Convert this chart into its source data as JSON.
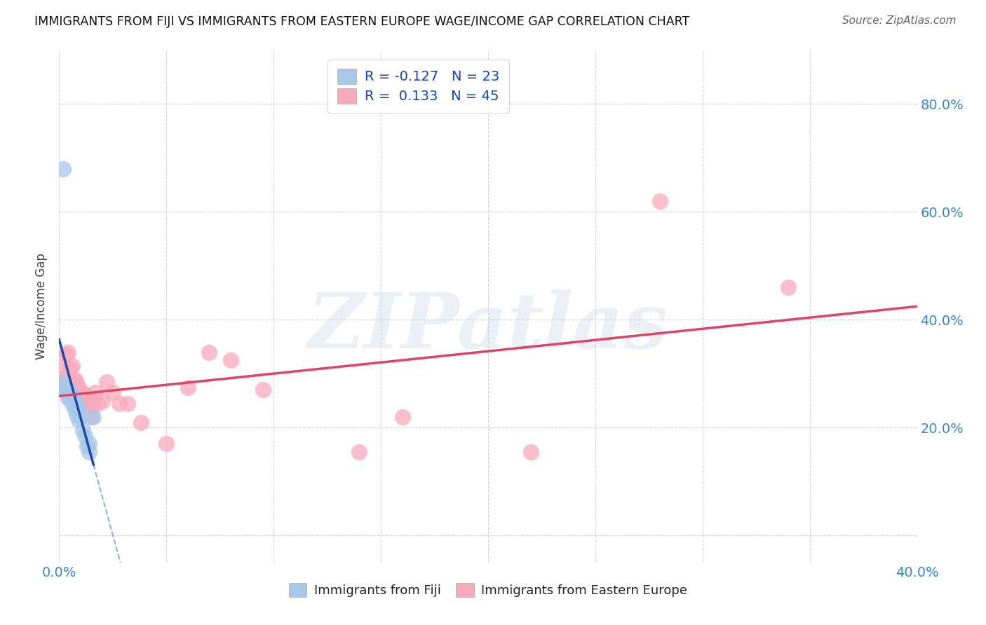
{
  "title": "IMMIGRANTS FROM FIJI VS IMMIGRANTS FROM EASTERN EUROPE WAGE/INCOME GAP CORRELATION CHART",
  "source": "Source: ZipAtlas.com",
  "ylabel": "Wage/Income Gap",
  "fiji_R": -0.127,
  "fiji_N": 23,
  "eastern_R": 0.133,
  "eastern_N": 45,
  "fiji_color": "#a8c8e8",
  "fiji_line_color": "#1a4aaa",
  "eastern_color": "#f8aabc",
  "eastern_line_color": "#dd4466",
  "fiji_x": [
    0.002,
    0.003,
    0.003,
    0.004,
    0.004,
    0.005,
    0.005,
    0.006,
    0.006,
    0.007,
    0.007,
    0.008,
    0.008,
    0.009,
    0.009,
    0.01,
    0.011,
    0.012,
    0.013,
    0.014,
    0.014,
    0.016,
    0.002
  ],
  "fiji_y": [
    0.285,
    0.275,
    0.265,
    0.27,
    0.255,
    0.265,
    0.255,
    0.26,
    0.245,
    0.255,
    0.235,
    0.245,
    0.225,
    0.235,
    0.215,
    0.22,
    0.195,
    0.185,
    0.165,
    0.155,
    0.17,
    0.22,
    0.68
  ],
  "eastern_x": [
    0.001,
    0.002,
    0.002,
    0.003,
    0.003,
    0.004,
    0.004,
    0.005,
    0.005,
    0.005,
    0.006,
    0.006,
    0.007,
    0.007,
    0.008,
    0.009,
    0.009,
    0.01,
    0.01,
    0.011,
    0.012,
    0.013,
    0.013,
    0.014,
    0.015,
    0.015,
    0.016,
    0.017,
    0.018,
    0.02,
    0.022,
    0.025,
    0.028,
    0.032,
    0.038,
    0.05,
    0.06,
    0.07,
    0.08,
    0.095,
    0.14,
    0.16,
    0.22,
    0.28,
    0.34
  ],
  "eastern_y": [
    0.29,
    0.315,
    0.275,
    0.335,
    0.29,
    0.34,
    0.275,
    0.31,
    0.285,
    0.265,
    0.315,
    0.27,
    0.29,
    0.265,
    0.285,
    0.275,
    0.255,
    0.265,
    0.245,
    0.265,
    0.26,
    0.255,
    0.24,
    0.255,
    0.24,
    0.22,
    0.25,
    0.265,
    0.245,
    0.25,
    0.285,
    0.265,
    0.245,
    0.245,
    0.21,
    0.17,
    0.275,
    0.34,
    0.325,
    0.27,
    0.155,
    0.22,
    0.155,
    0.62,
    0.46
  ],
  "xlim": [
    0.0,
    0.4
  ],
  "ylim": [
    -0.05,
    0.9
  ],
  "watermark": "ZIPatlas",
  "background_color": "#ffffff",
  "grid_color": "#c8c8c8"
}
